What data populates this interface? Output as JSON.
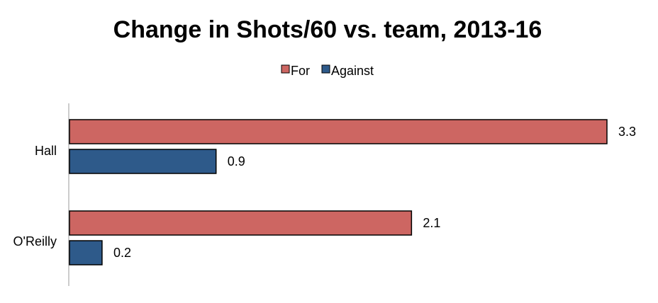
{
  "chart_data": {
    "type": "bar",
    "orientation": "horizontal",
    "title": "Change in Shots/60 vs. team, 2013-16",
    "xlabel": "",
    "ylabel": "",
    "categories": [
      "Hall",
      "O'Reilly"
    ],
    "series": [
      {
        "name": "For",
        "color": "#cd6662",
        "values": [
          3.3,
          2.1
        ],
        "labels": [
          "3.3",
          "2.1"
        ]
      },
      {
        "name": "Against",
        "color": "#2e5a8a",
        "values": [
          0.9,
          0.2
        ],
        "labels": [
          "0.9",
          "0.2"
        ]
      }
    ],
    "xlim": [
      0,
      3.3
    ],
    "grid": false,
    "legend_position": "top-center"
  }
}
